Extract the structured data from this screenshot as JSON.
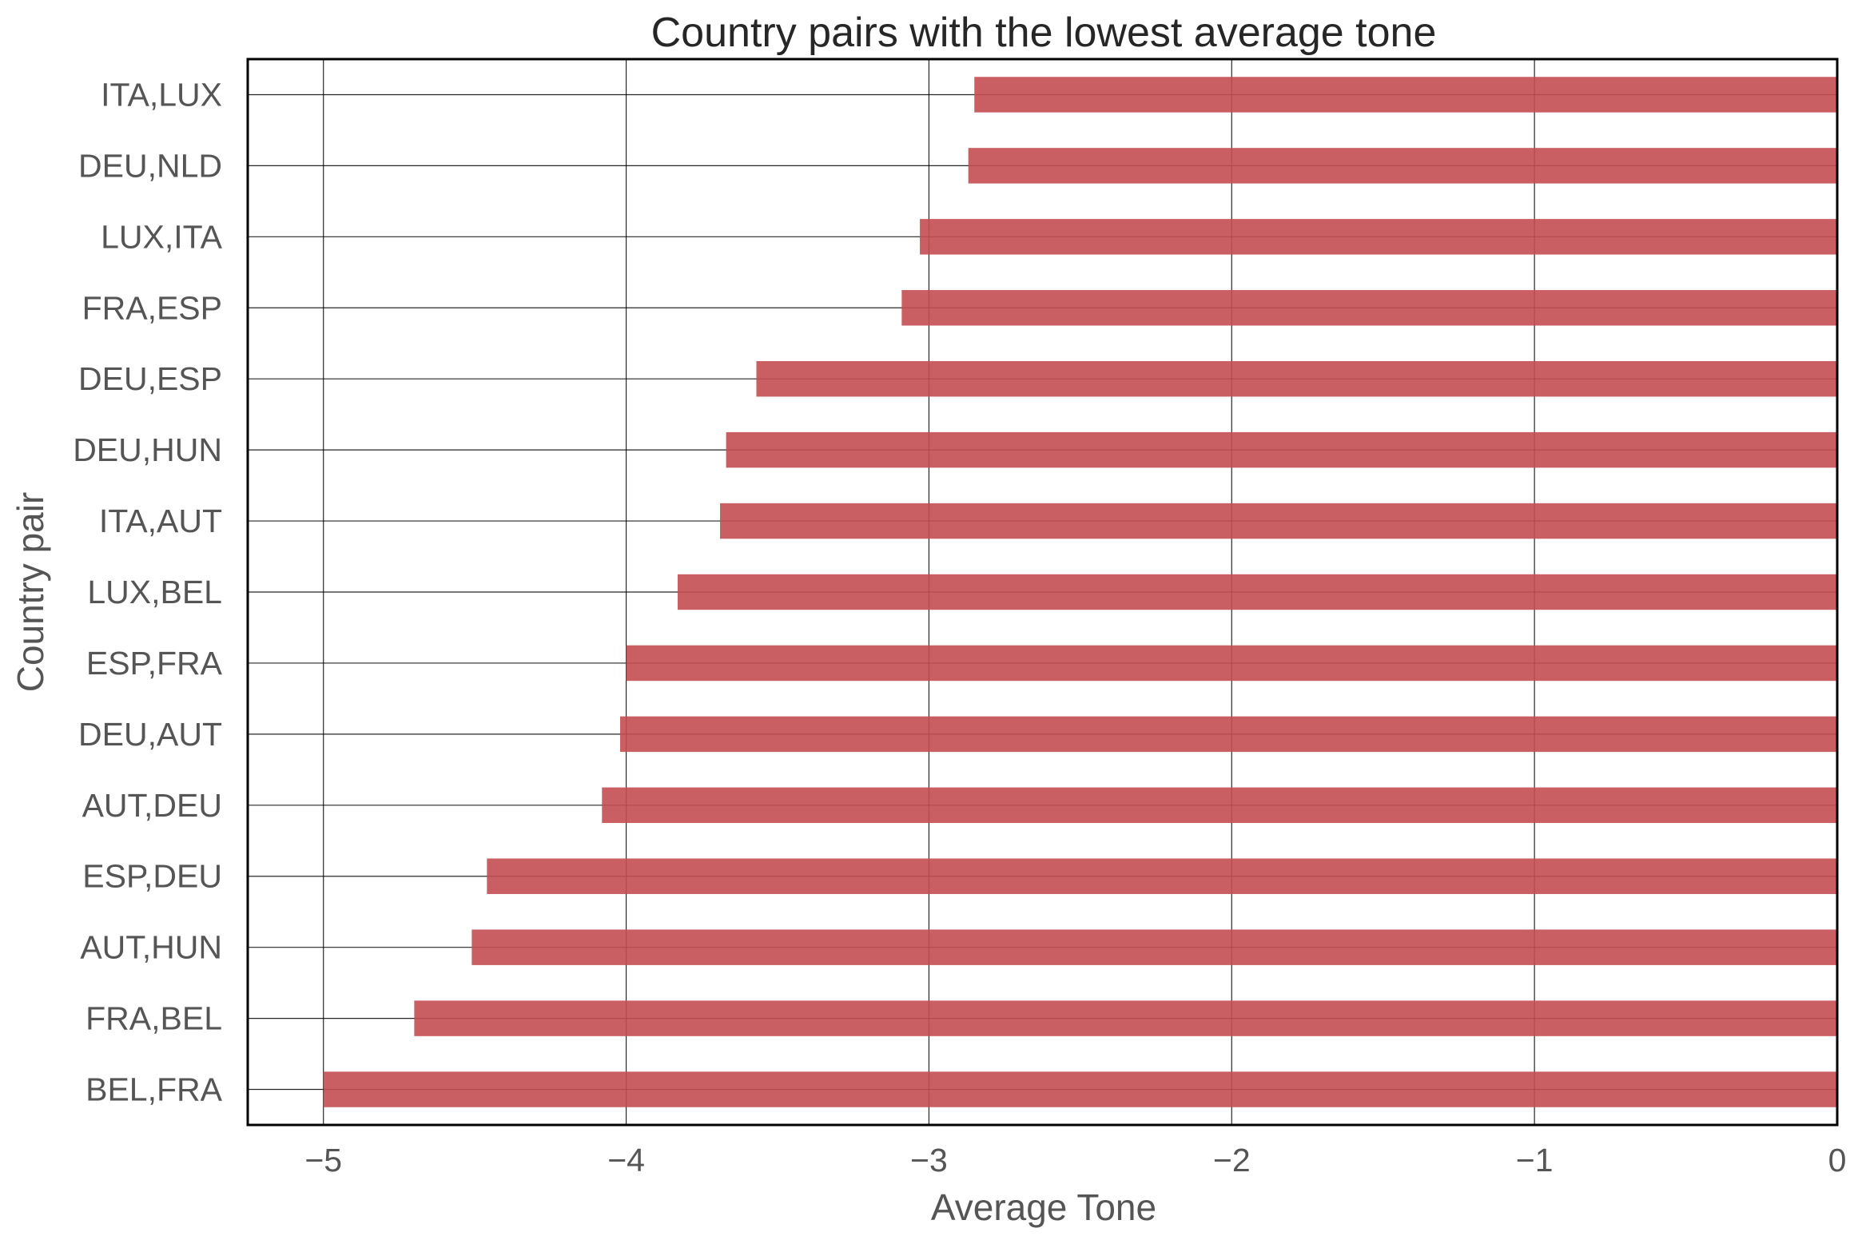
{
  "chart_data": {
    "type": "bar",
    "orientation": "horizontal",
    "title": "Country pairs with the lowest average tone",
    "xlabel": "Average Tone",
    "ylabel": "Country pair",
    "categories": [
      "ITA,LUX",
      "DEU,NLD",
      "LUX,ITA",
      "FRA,ESP",
      "DEU,ESP",
      "DEU,HUN",
      "ITA,AUT",
      "LUX,BEL",
      "ESP,FRA",
      "DEU,AUT",
      "AUT,DEU",
      "ESP,DEU",
      "AUT,HUN",
      "FRA,BEL",
      "BEL,FRA"
    ],
    "values": [
      -2.85,
      -2.87,
      -3.03,
      -3.09,
      -3.57,
      -3.67,
      -3.69,
      -3.83,
      -4.0,
      -4.02,
      -4.08,
      -4.46,
      -4.51,
      -4.7,
      -5.0
    ],
    "xlim": [
      -5.25,
      0
    ],
    "xticks": [
      -5,
      -4,
      -3,
      -2,
      -1,
      0
    ],
    "xtick_labels": [
      "−5",
      "−4",
      "−3",
      "−2",
      "−1",
      "0"
    ],
    "grid": true,
    "bar_color": "#c44e52"
  }
}
